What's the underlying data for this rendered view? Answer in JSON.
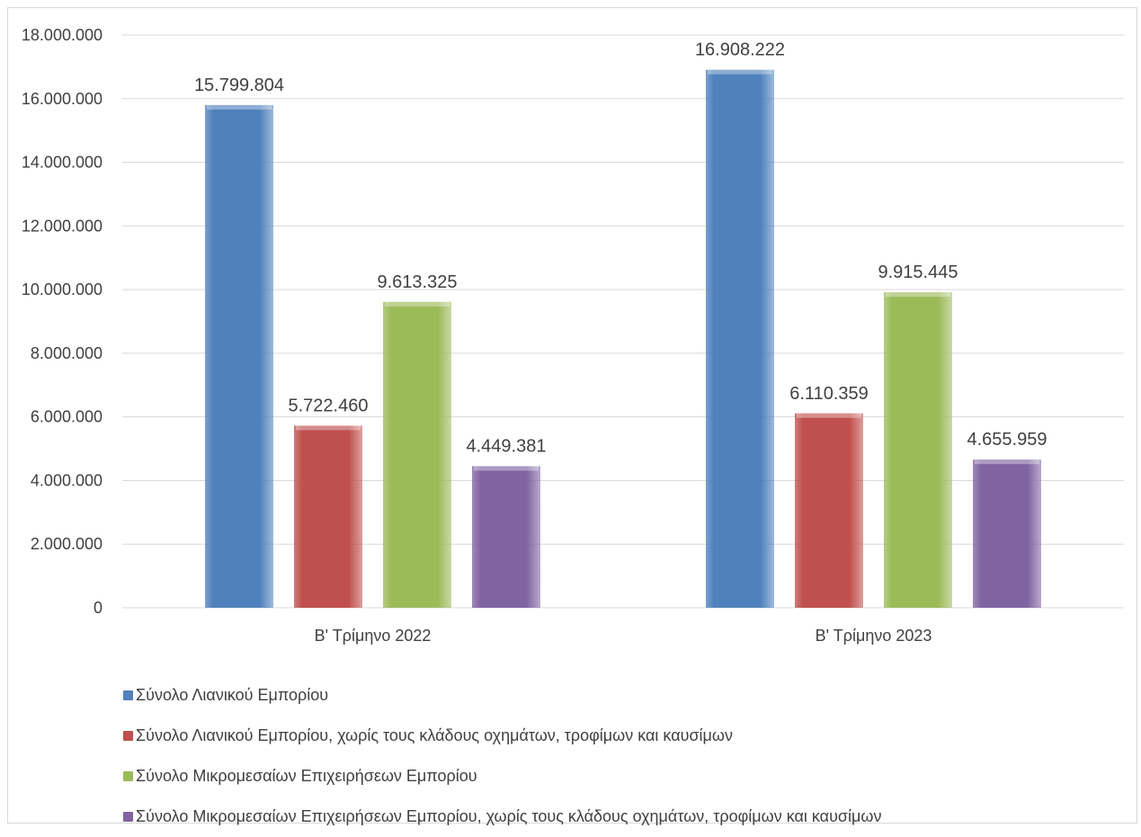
{
  "chart_data": {
    "type": "bar",
    "categories": [
      "Β' Τρίμηνο 2022",
      "Β' Τρίμηνο 2023"
    ],
    "series": [
      {
        "name": "Σύνολο Λιανικού Εμπορίου",
        "color": "#4f81bd",
        "values": [
          15799804,
          16908222
        ],
        "labels": [
          "15.799.804",
          "16.908.222"
        ]
      },
      {
        "name": "Σύνολο Λιανικού Εμπορίου, χωρίς τους κλάδους οχημάτων, τροφίμων και καυσίμων",
        "color": "#c0504d",
        "values": [
          5722460,
          6110359
        ],
        "labels": [
          "5.722.460",
          "6.110.359"
        ]
      },
      {
        "name": "Σύνολο Μικρομεσαίων Επιχειρήσεων Εμπορίου",
        "color": "#9bbb59",
        "values": [
          9613325,
          9915445
        ],
        "labels": [
          "9.613.325",
          "9.915.445"
        ]
      },
      {
        "name": "Σύνολο Μικρομεσαίων Επιχειρήσεων Εμπορίου, χωρίς τους κλάδους οχημάτων, τροφίμων και καυσίμων",
        "color": "#8064a2",
        "values": [
          4449381,
          4655959
        ],
        "labels": [
          "4.449.381",
          "4.655.959"
        ]
      }
    ],
    "yticks": [
      0,
      2000000,
      4000000,
      6000000,
      8000000,
      10000000,
      12000000,
      14000000,
      16000000,
      18000000
    ],
    "ytick_labels": [
      "0",
      "2.000.000",
      "4.000.000",
      "6.000.000",
      "8.000.000",
      "10.000.000",
      "12.000.000",
      "14.000.000",
      "16.000.000",
      "18.000.000"
    ],
    "ylim": [
      0,
      18000000
    ],
    "grid": true,
    "legend_position": "bottom",
    "title": "",
    "xlabel": "",
    "ylabel": ""
  }
}
